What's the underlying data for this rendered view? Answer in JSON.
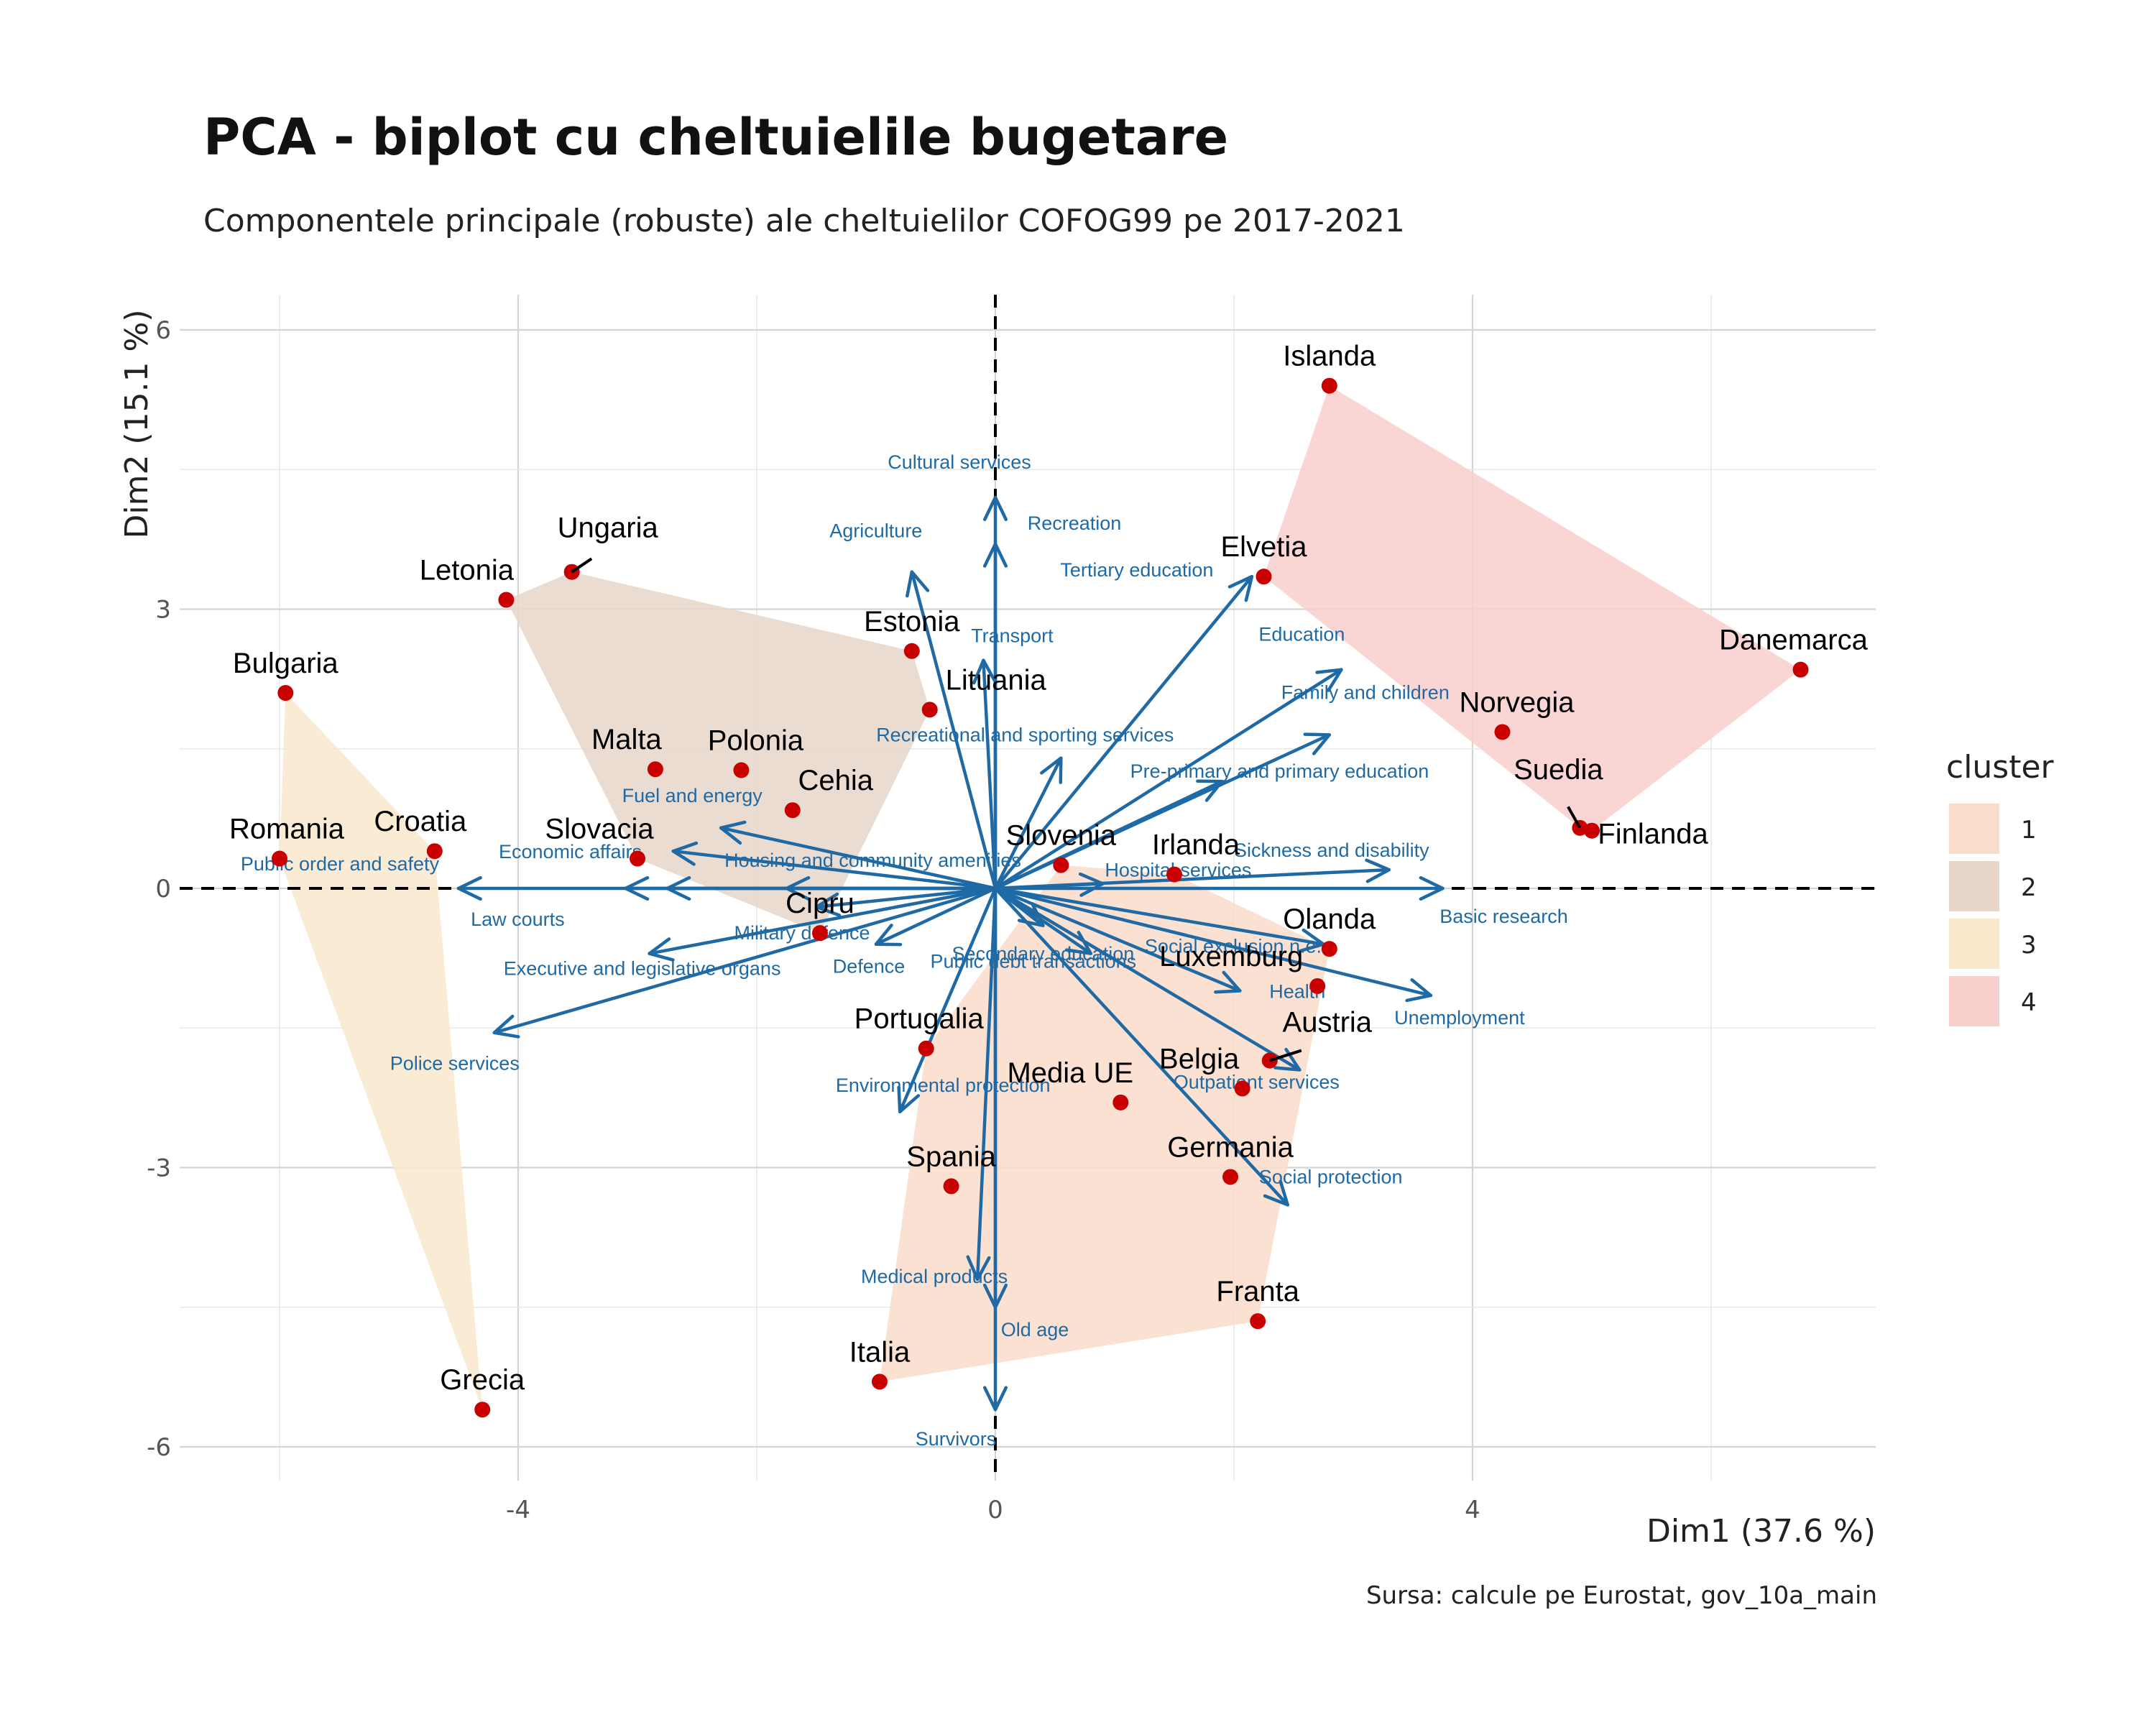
{
  "title": "PCA - biplot cu cheltuielile bugetare",
  "subtitle": "Componentele principale (robuste) ale cheltuielilor COFOG99 pe 2017-2021",
  "caption": "Sursa: calcule pe Eurostat, gov_10a_main",
  "chart_data": {
    "type": "scatter",
    "xlabel": "Dim1 (37.6 %)",
    "ylabel": "Dim2 (15.1 %)",
    "xlim": [
      -6.6,
      7.4
    ],
    "ylim": [
      -6.4,
      6.3
    ],
    "x_ticks": [
      -4,
      0,
      4
    ],
    "y_ticks": [
      -6,
      -3,
      0,
      3,
      6
    ],
    "grid": true,
    "reference_lines": [
      {
        "axis": "x",
        "value": 0
      },
      {
        "axis": "y",
        "value": 0
      }
    ],
    "legend": {
      "title": "cluster",
      "placement": "right",
      "entries": [
        {
          "label": "1",
          "color": "#f9dcca"
        },
        {
          "label": "2",
          "color": "#e8d6c9"
        },
        {
          "label": "3",
          "color": "#f9e8cc"
        },
        {
          "label": "4",
          "color": "#f8cfcd"
        }
      ]
    },
    "point_color": "#c80000",
    "arrow_color": "#1f6aa5",
    "countries": [
      {
        "name": "Islanda",
        "x": 2.8,
        "y": 5.4,
        "cluster": 4
      },
      {
        "name": "Elvetia",
        "x": 2.25,
        "y": 3.35,
        "cluster": 4
      },
      {
        "name": "Danemarca",
        "x": 6.75,
        "y": 2.35,
        "cluster": 4
      },
      {
        "name": "Norvegia",
        "x": 4.25,
        "y": 1.68,
        "cluster": 4
      },
      {
        "name": "Suedia",
        "x": 4.9,
        "y": 0.65,
        "cluster": 4
      },
      {
        "name": "Finlanda",
        "x": 5.0,
        "y": 0.62,
        "cluster": 4
      },
      {
        "name": "Ungaria",
        "x": -3.55,
        "y": 3.4,
        "cluster": 2
      },
      {
        "name": "Letonia",
        "x": -4.1,
        "y": 3.1,
        "cluster": 2
      },
      {
        "name": "Estonia",
        "x": -0.7,
        "y": 2.55,
        "cluster": 2
      },
      {
        "name": "Lituania",
        "x": -0.55,
        "y": 1.92,
        "cluster": 2
      },
      {
        "name": "Malta",
        "x": -2.85,
        "y": 1.28,
        "cluster": 2
      },
      {
        "name": "Polonia",
        "x": -2.13,
        "y": 1.27,
        "cluster": 2
      },
      {
        "name": "Cehia",
        "x": -1.7,
        "y": 0.84,
        "cluster": 2
      },
      {
        "name": "Slovacia",
        "x": -3.0,
        "y": 0.32,
        "cluster": 2
      },
      {
        "name": "Cipru",
        "x": -1.47,
        "y": -0.48,
        "cluster": 2
      },
      {
        "name": "Bulgaria",
        "x": -5.95,
        "y": 2.1,
        "cluster": 3
      },
      {
        "name": "Romania",
        "x": -6.0,
        "y": 0.32,
        "cluster": 3
      },
      {
        "name": "Croatia",
        "x": -4.7,
        "y": 0.4,
        "cluster": 3
      },
      {
        "name": "Grecia",
        "x": -4.3,
        "y": -5.6,
        "cluster": 3
      },
      {
        "name": "Slovenia",
        "x": 0.55,
        "y": 0.25,
        "cluster": 1
      },
      {
        "name": "Irlanda",
        "x": 1.5,
        "y": 0.15,
        "cluster": 1
      },
      {
        "name": "Olanda",
        "x": 2.8,
        "y": -0.65,
        "cluster": 1
      },
      {
        "name": "Luxemburg",
        "x": 2.7,
        "y": -1.05,
        "cluster": 1
      },
      {
        "name": "Austria",
        "x": 2.3,
        "y": -1.85,
        "cluster": 1
      },
      {
        "name": "Belgia",
        "x": 2.07,
        "y": -2.15,
        "cluster": 1
      },
      {
        "name": "Media UE",
        "x": 1.05,
        "y": -2.3,
        "cluster": 1
      },
      {
        "name": "Portugalia",
        "x": -0.58,
        "y": -1.72,
        "cluster": 1
      },
      {
        "name": "Spania",
        "x": -0.37,
        "y": -3.2,
        "cluster": 1
      },
      {
        "name": "Germania",
        "x": 1.97,
        "y": -3.1,
        "cluster": 1
      },
      {
        "name": "Franta",
        "x": 2.2,
        "y": -4.65,
        "cluster": 1
      },
      {
        "name": "Italia",
        "x": -0.97,
        "y": -5.3,
        "cluster": 1
      }
    ],
    "variables": [
      {
        "name": "Cultural services",
        "x": 0.0,
        "y": 4.2
      },
      {
        "name": "Recreation",
        "x": 0.0,
        "y": 3.7
      },
      {
        "name": "Agriculture",
        "x": -0.7,
        "y": 3.4
      },
      {
        "name": "Transport",
        "x": -0.1,
        "y": 2.45
      },
      {
        "name": "Tertiary education",
        "x": 2.15,
        "y": 3.35
      },
      {
        "name": "Education",
        "x": 2.9,
        "y": 2.35
      },
      {
        "name": "Family and children",
        "x": 2.8,
        "y": 1.65
      },
      {
        "name": "Recreational and sporting services",
        "x": 0.55,
        "y": 1.4
      },
      {
        "name": "Pre-primary and primary education",
        "x": 1.9,
        "y": 1.15
      },
      {
        "name": "Hospital services",
        "x": 0.9,
        "y": 0.05
      },
      {
        "name": "Sickness and disability",
        "x": 3.3,
        "y": 0.2
      },
      {
        "name": "Basic research",
        "x": 3.75,
        "y": 0.0
      },
      {
        "name": "Social exclusion n.e.c.",
        "x": 2.75,
        "y": -0.6
      },
      {
        "name": "Health",
        "x": 2.05,
        "y": -1.1
      },
      {
        "name": "Unemployment",
        "x": 3.65,
        "y": -1.15
      },
      {
        "name": "Outpatient services",
        "x": 2.55,
        "y": -1.95
      },
      {
        "name": "Social protection",
        "x": 2.45,
        "y": -3.4
      },
      {
        "name": "Public debt transactions",
        "x": 0.8,
        "y": -0.7
      },
      {
        "name": "Secondary education",
        "x": 0.4,
        "y": -0.4
      },
      {
        "name": "Environmental protection",
        "x": -0.8,
        "y": -2.4
      },
      {
        "name": "Medical products",
        "x": -0.15,
        "y": -4.2
      },
      {
        "name": "Old age",
        "x": 0.0,
        "y": -4.5
      },
      {
        "name": "Survivors",
        "x": 0.0,
        "y": -5.6
      },
      {
        "name": "Public order and safety",
        "x": -4.5,
        "y": 0.0
      },
      {
        "name": "Law courts",
        "x": -3.1,
        "y": 0.0
      },
      {
        "name": "Economic affairs",
        "x": -2.75,
        "y": 0.0
      },
      {
        "name": "Housing and community amenities",
        "x": -1.75,
        "y": 0.0
      },
      {
        "name": "Military defence",
        "x": -1.5,
        "y": -0.2
      },
      {
        "name": "Fuel and energy",
        "x": -2.3,
        "y": 0.65
      },
      {
        "name": "Defence",
        "x": -1.0,
        "y": -0.6
      },
      {
        "name": "Executive and legislative organs",
        "x": -2.9,
        "y": -0.7
      },
      {
        "name": "Police services",
        "x": -4.2,
        "y": -1.55
      },
      {
        "name": "Slovacia arrow",
        "x": -2.7,
        "y": 0.4
      }
    ]
  }
}
